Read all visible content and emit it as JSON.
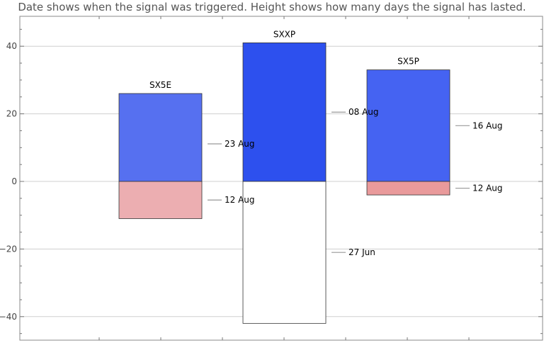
{
  "chart_data": {
    "type": "bar",
    "title": "Date shows when the signal was triggered. Height shows how many days the signal has lasted.",
    "xlabel": "",
    "ylabel": "",
    "ylim": [
      -48,
      48
    ],
    "yticks": [
      -40,
      -20,
      0,
      20,
      40
    ],
    "ytick_labels": [
      "−40",
      "−20",
      "0",
      "20",
      "40"
    ],
    "grid": true,
    "categories": [
      "SX5E",
      "SXXP",
      "SX5P"
    ],
    "bars": [
      {
        "category": "SX5E",
        "positive": {
          "value": 26,
          "date": "23 Aug",
          "color": "#5670f0"
        },
        "negative": {
          "value": -11,
          "date": "12 Aug",
          "color": "#ecaeb1"
        }
      },
      {
        "category": "SXXP",
        "positive": {
          "value": 41,
          "date": "08 Aug",
          "color": "#2d50ee"
        },
        "negative": {
          "value": -42,
          "date": "27 Jun",
          "color": "#ffffff"
        }
      },
      {
        "category": "SX5P",
        "positive": {
          "value": 33,
          "date": "16 Aug",
          "color": "#4563f2"
        },
        "negative": {
          "value": -4,
          "date": "12 Aug",
          "color": "#e99a9b"
        }
      }
    ]
  }
}
